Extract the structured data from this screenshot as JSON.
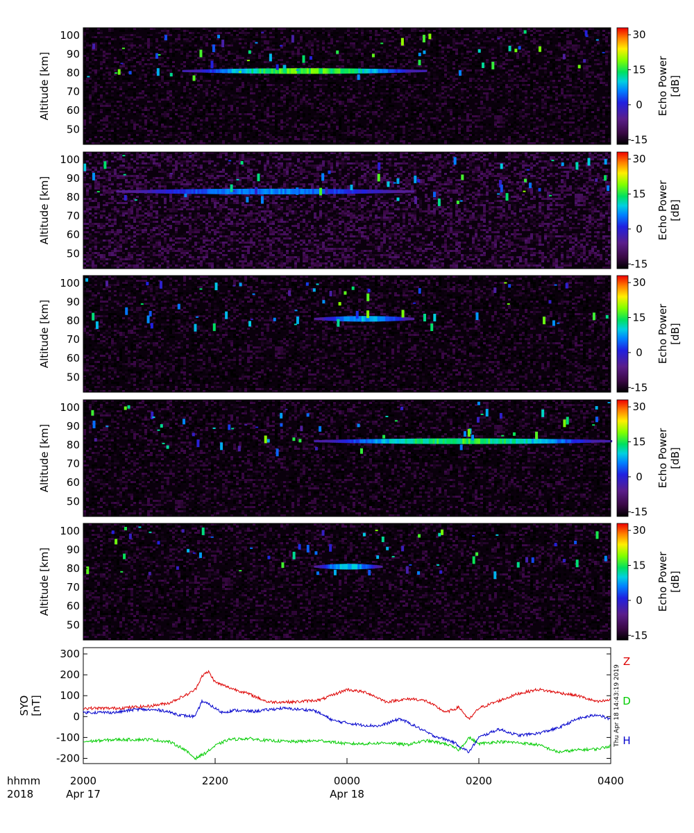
{
  "chart_data": [
    {
      "type": "heatmap",
      "panel": 1,
      "ylabel": "Altitude [km]",
      "yticks": [
        50,
        60,
        70,
        80,
        90,
        100
      ],
      "ylim": [
        42,
        104
      ],
      "xlim_hours": [
        20,
        28
      ],
      "colorbar": {
        "label": "Echo Power [dB]",
        "ticks": [
          30,
          15,
          0,
          -15
        ],
        "range": [
          -17,
          33
        ]
      },
      "echo_layer": {
        "altitude_km": 81,
        "peak_dB": 20,
        "time_range": [
          "2130",
          "0110"
        ]
      },
      "background_dB": -15
    },
    {
      "type": "heatmap",
      "panel": 2,
      "ylabel": "Altitude [km]",
      "yticks": [
        50,
        60,
        70,
        80,
        90,
        100
      ],
      "ylim": [
        42,
        104
      ],
      "xlim_hours": [
        20,
        28
      ],
      "colorbar": {
        "label": "Echo Power [dB]",
        "ticks": [
          30,
          15,
          0,
          -15
        ],
        "range": [
          -17,
          33
        ]
      },
      "echo_layer": {
        "altitude_km": 83,
        "peak_dB": 8,
        "time_range": [
          "2030",
          "0100"
        ]
      },
      "background_dB": -12
    },
    {
      "type": "heatmap",
      "panel": 3,
      "ylabel": "Altitude [km]",
      "yticks": [
        50,
        60,
        70,
        80,
        90,
        100
      ],
      "ylim": [
        42,
        104
      ],
      "xlim_hours": [
        20,
        28
      ],
      "colorbar": {
        "label": "Echo Power [dB]",
        "ticks": [
          30,
          15,
          0,
          -15
        ],
        "range": [
          -17,
          33
        ]
      },
      "echo_layer": {
        "altitude_km": 81,
        "peak_dB": 10,
        "time_range": [
          "2330",
          "0100"
        ]
      },
      "background_dB": -15
    },
    {
      "type": "heatmap",
      "panel": 4,
      "ylabel": "Altitude [km]",
      "yticks": [
        50,
        60,
        70,
        80,
        90,
        100
      ],
      "ylim": [
        42,
        104
      ],
      "xlim_hours": [
        20,
        28
      ],
      "colorbar": {
        "label": "Echo Power [dB]",
        "ticks": [
          30,
          15,
          0,
          -15
        ],
        "range": [
          -17,
          33
        ]
      },
      "echo_layer": {
        "altitude_km": 82,
        "peak_dB": 18,
        "time_range": [
          "2330",
          "0400"
        ]
      },
      "background_dB": -15
    },
    {
      "type": "heatmap",
      "panel": 5,
      "ylabel": "Altitude [km]",
      "yticks": [
        50,
        60,
        70,
        80,
        90,
        100
      ],
      "ylim": [
        42,
        104
      ],
      "xlim_hours": [
        20,
        28
      ],
      "colorbar": {
        "label": "Echo Power [dB]",
        "ticks": [
          30,
          15,
          0,
          -15
        ],
        "range": [
          -17,
          33
        ]
      },
      "echo_layer": {
        "altitude_km": 81,
        "peak_dB": 12,
        "time_range": [
          "2330",
          "0030"
        ]
      },
      "background_dB": -15
    },
    {
      "type": "line",
      "ylabel": "SYO [nT]",
      "yticks": [
        300,
        200,
        100,
        0,
        -100,
        -200
      ],
      "ylim": [
        -225,
        330
      ],
      "xlim_hours": [
        20,
        28
      ],
      "timestamp": "Thu Apr 18 14:43:19 2019",
      "series": [
        {
          "name": "Z",
          "color": "#dd0000",
          "x": [
            20.0,
            20.5,
            21.0,
            21.3,
            21.6,
            21.7,
            21.8,
            21.9,
            22.0,
            22.2,
            22.5,
            22.8,
            23.2,
            23.6,
            24.0,
            24.3,
            24.6,
            24.8,
            25.0,
            25.2,
            25.5,
            25.7,
            25.85,
            26.0,
            26.3,
            26.6,
            26.9,
            27.2,
            27.5,
            27.8,
            28.0
          ],
          "y": [
            40,
            40,
            50,
            65,
            110,
            130,
            195,
            215,
            165,
            140,
            110,
            70,
            70,
            80,
            130,
            115,
            70,
            80,
            85,
            75,
            20,
            45,
            -15,
            40,
            75,
            110,
            130,
            115,
            100,
            70,
            80
          ]
        },
        {
          "name": "D",
          "color": "#00cc00",
          "x": [
            20.0,
            20.5,
            21.0,
            21.3,
            21.5,
            21.7,
            21.85,
            22.0,
            22.2,
            22.5,
            22.8,
            23.2,
            23.6,
            24.0,
            24.3,
            24.6,
            24.9,
            25.2,
            25.5,
            25.7,
            25.85,
            26.0,
            26.3,
            26.6,
            26.9,
            27.2,
            27.5,
            27.8,
            28.0
          ],
          "y": [
            -120,
            -110,
            -110,
            -120,
            -150,
            -200,
            -175,
            -140,
            -110,
            -105,
            -115,
            -120,
            -115,
            -130,
            -130,
            -125,
            -135,
            -115,
            -130,
            -160,
            -100,
            -130,
            -120,
            -125,
            -135,
            -170,
            -160,
            -155,
            -140
          ]
        },
        {
          "name": "H",
          "color": "#0000cc",
          "x": [
            20.0,
            20.5,
            20.8,
            21.2,
            21.5,
            21.7,
            21.8,
            21.95,
            22.1,
            22.3,
            22.6,
            23.0,
            23.5,
            23.8,
            24.2,
            24.5,
            24.8,
            25.0,
            25.3,
            25.6,
            25.85,
            26.0,
            26.3,
            26.6,
            26.9,
            27.2,
            27.5,
            27.8,
            28.0
          ],
          "y": [
            20,
            20,
            35,
            30,
            5,
            0,
            75,
            50,
            20,
            30,
            25,
            40,
            30,
            -20,
            -40,
            -45,
            -10,
            -40,
            -90,
            -120,
            -170,
            -100,
            -60,
            -90,
            -80,
            -55,
            -10,
            10,
            -15
          ]
        }
      ]
    }
  ],
  "time_axis": {
    "row1_label": "hhmm",
    "row2_label": "2018",
    "ticks": [
      {
        "hour": 20,
        "time": "2000",
        "date": "Apr 17"
      },
      {
        "hour": 22,
        "time": "2200",
        "date": ""
      },
      {
        "hour": 24,
        "time": "0000",
        "date": "Apr 18"
      },
      {
        "hour": 26,
        "time": "0200",
        "date": ""
      },
      {
        "hour": 28,
        "time": "0400",
        "date": ""
      }
    ]
  }
}
